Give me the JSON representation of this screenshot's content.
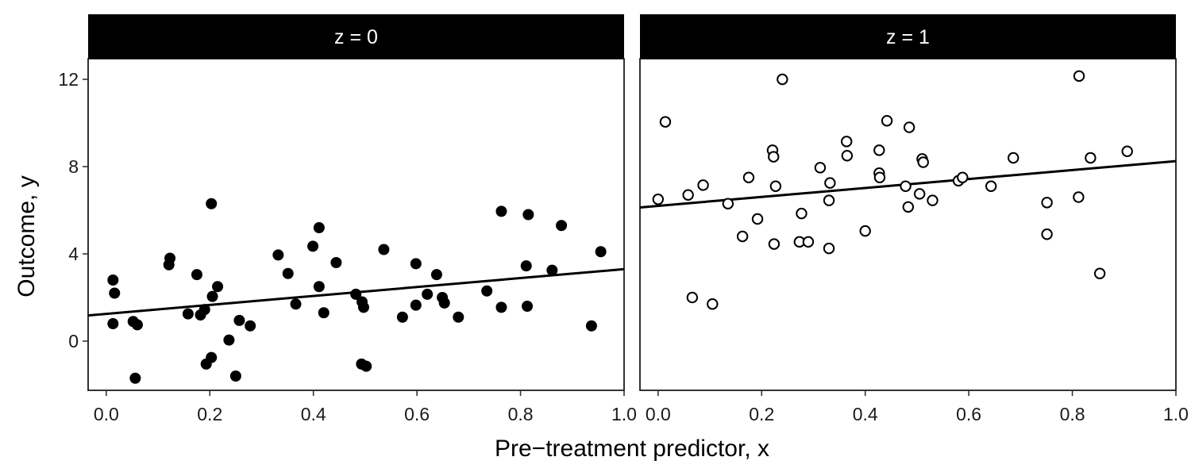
{
  "chart_data": {
    "type": "scatter",
    "facet_variable": "z",
    "xlabel": "Pre−treatment predictor, x",
    "ylabel": "Outcome, y",
    "xlim": [
      -0.035,
      1.0
    ],
    "ylim": [
      -2.35,
      12.0
    ],
    "x_ticks": [
      0.0,
      0.2,
      0.4,
      0.6,
      0.8,
      1.0
    ],
    "x_tick_labels": [
      "0.0",
      "0.2",
      "0.4",
      "0.6",
      "0.8",
      "1.0"
    ],
    "y_ticks": [
      0,
      4,
      8,
      12
    ],
    "y_tick_labels": [
      "0",
      "4",
      "8",
      "12"
    ],
    "grid": false,
    "colors": {
      "strip_fill": "#000000",
      "strip_text": "#ffffff",
      "points": "#000000",
      "line": "#000000",
      "panel_border": "#000000"
    },
    "panels": [
      {
        "strip_label": "z = 0",
        "marker": "filled-circle",
        "fit_line": {
          "intercept": 1.25,
          "slope": 2.05
        },
        "points": [
          [
            0.013,
            2.8
          ],
          [
            0.016,
            2.2
          ],
          [
            0.013,
            0.8
          ],
          [
            0.052,
            0.9
          ],
          [
            0.06,
            0.75
          ],
          [
            0.056,
            -1.7
          ],
          [
            0.123,
            3.8
          ],
          [
            0.121,
            3.5
          ],
          [
            0.158,
            1.25
          ],
          [
            0.175,
            3.05
          ],
          [
            0.182,
            1.2
          ],
          [
            0.19,
            1.45
          ],
          [
            0.193,
            -1.05
          ],
          [
            0.203,
            6.3
          ],
          [
            0.205,
            2.05
          ],
          [
            0.203,
            -0.75
          ],
          [
            0.215,
            2.5
          ],
          [
            0.237,
            0.05
          ],
          [
            0.25,
            -1.6
          ],
          [
            0.257,
            0.95
          ],
          [
            0.278,
            0.7
          ],
          [
            0.332,
            3.95
          ],
          [
            0.351,
            3.1
          ],
          [
            0.366,
            1.7
          ],
          [
            0.399,
            4.35
          ],
          [
            0.411,
            5.2
          ],
          [
            0.411,
            2.5
          ],
          [
            0.42,
            1.3
          ],
          [
            0.444,
            3.6
          ],
          [
            0.482,
            2.15
          ],
          [
            0.494,
            1.8
          ],
          [
            0.497,
            1.55
          ],
          [
            0.493,
            -1.05
          ],
          [
            0.502,
            -1.15
          ],
          [
            0.536,
            4.2
          ],
          [
            0.572,
            1.1
          ],
          [
            0.598,
            3.55
          ],
          [
            0.598,
            1.65
          ],
          [
            0.62,
            2.15
          ],
          [
            0.638,
            3.05
          ],
          [
            0.649,
            2.0
          ],
          [
            0.653,
            1.75
          ],
          [
            0.68,
            1.1
          ],
          [
            0.735,
            2.3
          ],
          [
            0.763,
            5.95
          ],
          [
            0.763,
            1.55
          ],
          [
            0.811,
            3.45
          ],
          [
            0.815,
            5.8
          ],
          [
            0.813,
            1.6
          ],
          [
            0.861,
            3.25
          ],
          [
            0.879,
            5.3
          ],
          [
            0.937,
            0.7
          ],
          [
            0.955,
            4.1
          ]
        ]
      },
      {
        "strip_label": "z = 1",
        "marker": "open-circle",
        "fit_line": {
          "intercept": 6.2,
          "slope": 2.05
        },
        "points": [
          [
            0.0,
            6.5
          ],
          [
            0.014,
            10.05
          ],
          [
            0.058,
            6.7
          ],
          [
            0.066,
            2.0
          ],
          [
            0.087,
            7.15
          ],
          [
            0.105,
            1.7
          ],
          [
            0.135,
            6.3
          ],
          [
            0.163,
            4.8
          ],
          [
            0.175,
            7.5
          ],
          [
            0.192,
            5.6
          ],
          [
            0.221,
            8.75
          ],
          [
            0.223,
            8.45
          ],
          [
            0.224,
            4.45
          ],
          [
            0.227,
            7.1
          ],
          [
            0.24,
            12.0
          ],
          [
            0.273,
            4.55
          ],
          [
            0.277,
            5.85
          ],
          [
            0.29,
            4.55
          ],
          [
            0.313,
            7.95
          ],
          [
            0.33,
            4.25
          ],
          [
            0.332,
            7.25
          ],
          [
            0.33,
            6.45
          ],
          [
            0.364,
            9.15
          ],
          [
            0.365,
            8.5
          ],
          [
            0.4,
            5.05
          ],
          [
            0.427,
            8.75
          ],
          [
            0.427,
            7.7
          ],
          [
            0.428,
            7.5
          ],
          [
            0.442,
            10.1
          ],
          [
            0.478,
            7.1
          ],
          [
            0.483,
            6.15
          ],
          [
            0.485,
            9.8
          ],
          [
            0.505,
            6.75
          ],
          [
            0.51,
            8.35
          ],
          [
            0.512,
            8.2
          ],
          [
            0.53,
            6.45
          ],
          [
            0.58,
            7.35
          ],
          [
            0.588,
            7.5
          ],
          [
            0.643,
            7.1
          ],
          [
            0.686,
            8.4
          ],
          [
            0.751,
            6.35
          ],
          [
            0.751,
            4.9
          ],
          [
            0.813,
            12.15
          ],
          [
            0.812,
            6.6
          ],
          [
            0.835,
            8.4
          ],
          [
            0.853,
            3.1
          ],
          [
            0.906,
            8.7
          ]
        ]
      }
    ]
  }
}
